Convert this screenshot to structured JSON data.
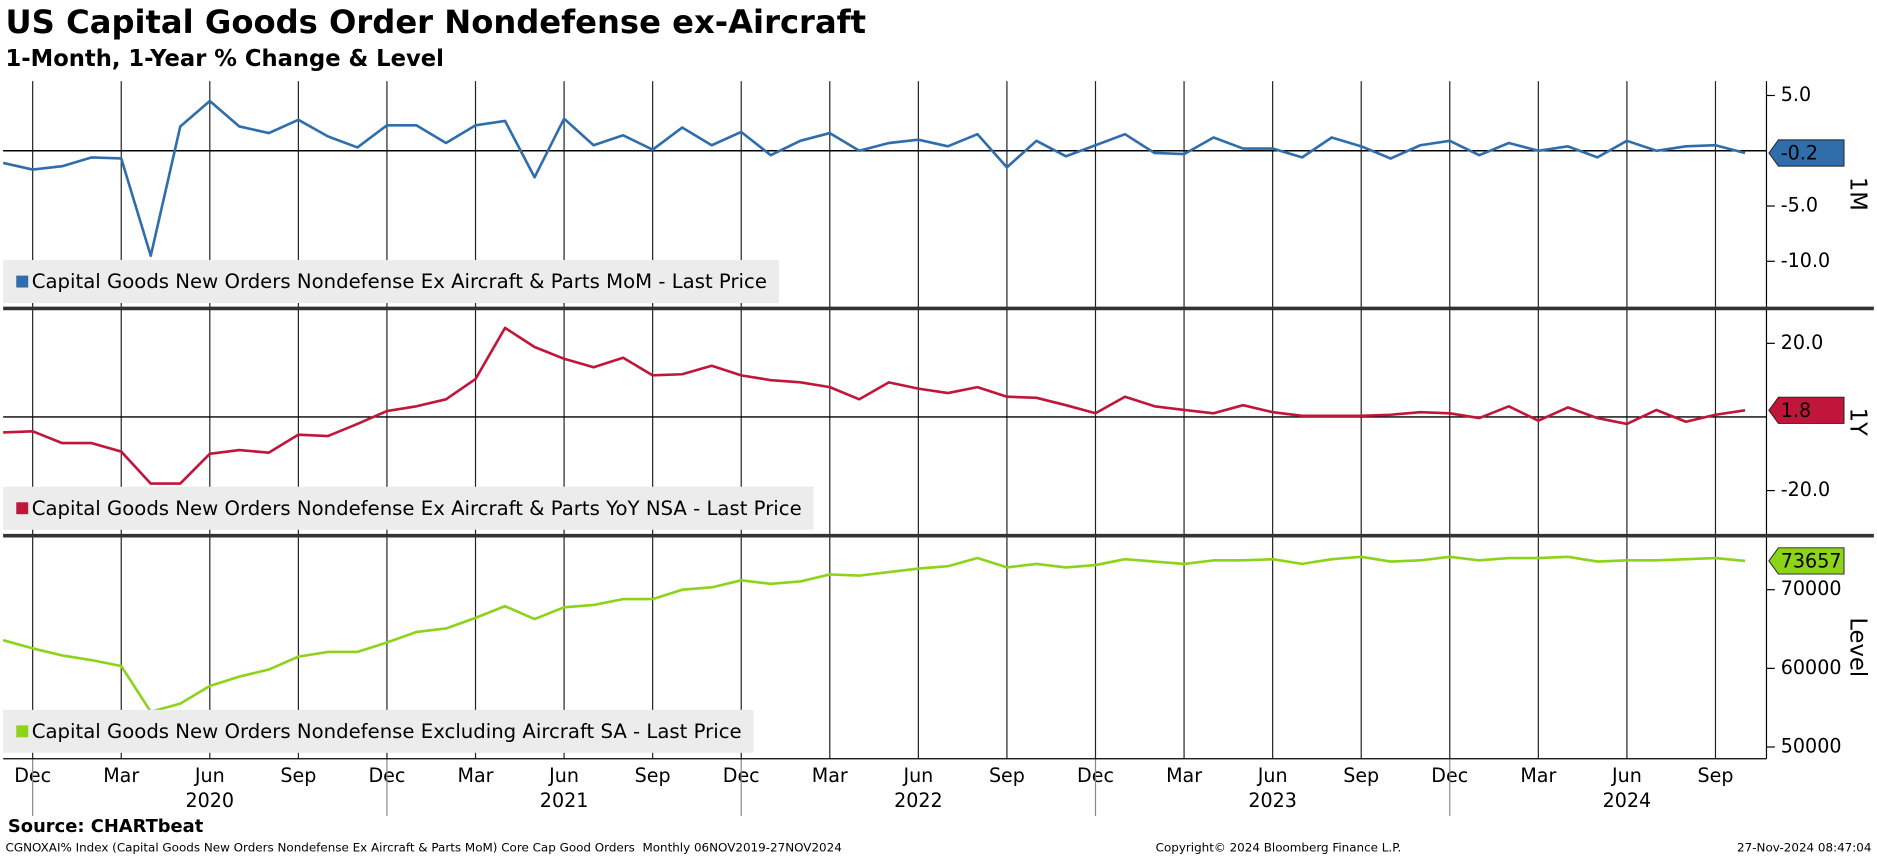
{
  "title": "US Capital Goods Order Nondefense ex-Aircraft",
  "subtitle": "1-Month, 1-Year % Change & Level",
  "x_axis": {
    "categories": [
      null,
      "Dec",
      null,
      null,
      "Mar",
      null,
      null,
      "Jun",
      null,
      null,
      "Sep",
      null,
      null,
      "Dec",
      null,
      null,
      "Mar",
      null,
      null,
      "Jun",
      null,
      null,
      "Sep",
      null,
      null,
      "Dec",
      null,
      null,
      "Mar",
      null,
      null,
      "Jun",
      null,
      null,
      "Sep",
      null,
      null,
      "Dec",
      null,
      null,
      "Mar",
      null,
      null,
      "Jun",
      null,
      null,
      "Sep",
      null,
      null,
      "Dec",
      null,
      null,
      "Mar",
      null,
      null,
      "Jun",
      null,
      null,
      "Sep",
      null
    ],
    "years": [
      null,
      null,
      null,
      null,
      null,
      null,
      null,
      "2020",
      null,
      null,
      null,
      null,
      null,
      null,
      null,
      null,
      null,
      null,
      null,
      "2021",
      null,
      null,
      null,
      null,
      null,
      null,
      null,
      null,
      null,
      null,
      null,
      "2022",
      null,
      null,
      null,
      null,
      null,
      null,
      null,
      null,
      null,
      null,
      null,
      "2023",
      null,
      null,
      null,
      null,
      null,
      null,
      null,
      null,
      null,
      null,
      null,
      "2024",
      null,
      null,
      null,
      null
    ]
  },
  "chart_data": [
    {
      "type": "line",
      "ylabel": "1M",
      "ylim": [
        -14.1,
        6.3
      ],
      "yticks": [
        {
          "value": 5,
          "label": "5.0"
        },
        {
          "value": -5,
          "label": "-5.0"
        },
        {
          "value": -10,
          "label": "-10.0"
        }
      ],
      "hline": 0,
      "legend": "lower left",
      "series": [
        {
          "name": "Capital Goods New Orders Nondefense Ex Aircraft & Parts MoM - Last Price",
          "color": "#2f6eaa",
          "values": [
            -1.1,
            -1.7,
            -1.4,
            -0.6,
            -0.7,
            -9.5,
            2.2,
            4.5,
            2.2,
            1.6,
            2.8,
            1.3,
            0.3,
            2.3,
            2.3,
            0.7,
            2.3,
            2.7,
            -2.4,
            2.9,
            0.5,
            1.4,
            0.1,
            2.1,
            0.5,
            1.7,
            -0.4,
            0.9,
            1.6,
            0.0,
            0.7,
            1.0,
            0.4,
            1.5,
            -1.5,
            0.9,
            -0.5,
            0.5,
            1.5,
            -0.2,
            -0.3,
            1.2,
            0.2,
            0.2,
            -0.6,
            1.2,
            0.4,
            -0.7,
            0.5,
            0.9,
            -0.4,
            0.7,
            0.0,
            0.4,
            -0.6,
            0.9,
            0.0,
            0.4,
            0.5,
            -0.2
          ]
        }
      ]
    },
    {
      "type": "line",
      "ylabel": "1Y",
      "ylim": [
        -31.6,
        29.0
      ],
      "yticks": [
        {
          "value": 20,
          "label": "20.0"
        },
        {
          "value": -20,
          "label": "-20.0"
        }
      ],
      "hline": 0,
      "legend": "lower left",
      "series": [
        {
          "name": "Capital Goods New Orders Nondefense Ex Aircraft & Parts YoY NSA - Last Price",
          "color": "#c0163a",
          "values": [
            -4.2,
            -3.9,
            -7.1,
            -7.1,
            -9.4,
            -18.1,
            -18.1,
            -10.0,
            -9.0,
            -9.7,
            -4.8,
            -5.2,
            -1.9,
            1.6,
            2.9,
            4.8,
            10.3,
            24.2,
            19.0,
            15.8,
            13.5,
            16.1,
            11.3,
            11.6,
            13.9,
            11.3,
            10.0,
            9.4,
            8.1,
            4.8,
            9.4,
            7.7,
            6.5,
            8.1,
            5.5,
            5.2,
            3.2,
            1.0,
            5.5,
            2.9,
            1.9,
            1.0,
            3.2,
            1.3,
            0.3,
            0.3,
            0.3,
            0.6,
            1.3,
            1.0,
            -0.3,
            2.9,
            -1.0,
            2.6,
            -0.3,
            -1.9,
            1.9,
            -1.3,
            0.6,
            1.8
          ]
        }
      ]
    },
    {
      "type": "line",
      "ylabel": "Level",
      "ylim": [
        48806,
        76567
      ],
      "yticks": [
        50000,
        60000,
        70000
      ],
      "legend": "lower left",
      "series": [
        {
          "name": "Capital Goods New Orders Nondefense Excluding Aircraft SA - Last Price",
          "color": "#8cd31a",
          "values": [
            63582,
            62537,
            61642,
            61045,
            60299,
            54478,
            55522,
            57761,
            58955,
            59851,
            61493,
            62090,
            62090,
            63284,
            64627,
            65075,
            66418,
            67910,
            66269,
            67761,
            68060,
            68806,
            68806,
            70000,
            70299,
            71194,
            70746,
            71045,
            71940,
            71791,
            72239,
            72687,
            72985,
            74030,
            72836,
            73284,
            72836,
            73134,
            73881,
            73582,
            73284,
            73731,
            73731,
            73881,
            73284,
            73881,
            74179,
            73582,
            73731,
            74179,
            73731,
            74030,
            74030,
            74179,
            73582,
            73731,
            73731,
            73881,
            74030,
            73657
          ]
        }
      ]
    }
  ],
  "source": "Source: CHARTbeat",
  "footer": {
    "left": "CGNOXAI% Index (Capital Goods New Orders Nondefense Ex Aircraft & Parts MoM) Core Cap Good Orders  Monthly 06NOV2019-27NOV2024",
    "center": "Copyright© 2024 Bloomberg Finance L.P.",
    "right": "27-Nov-2024 08:47:04"
  }
}
